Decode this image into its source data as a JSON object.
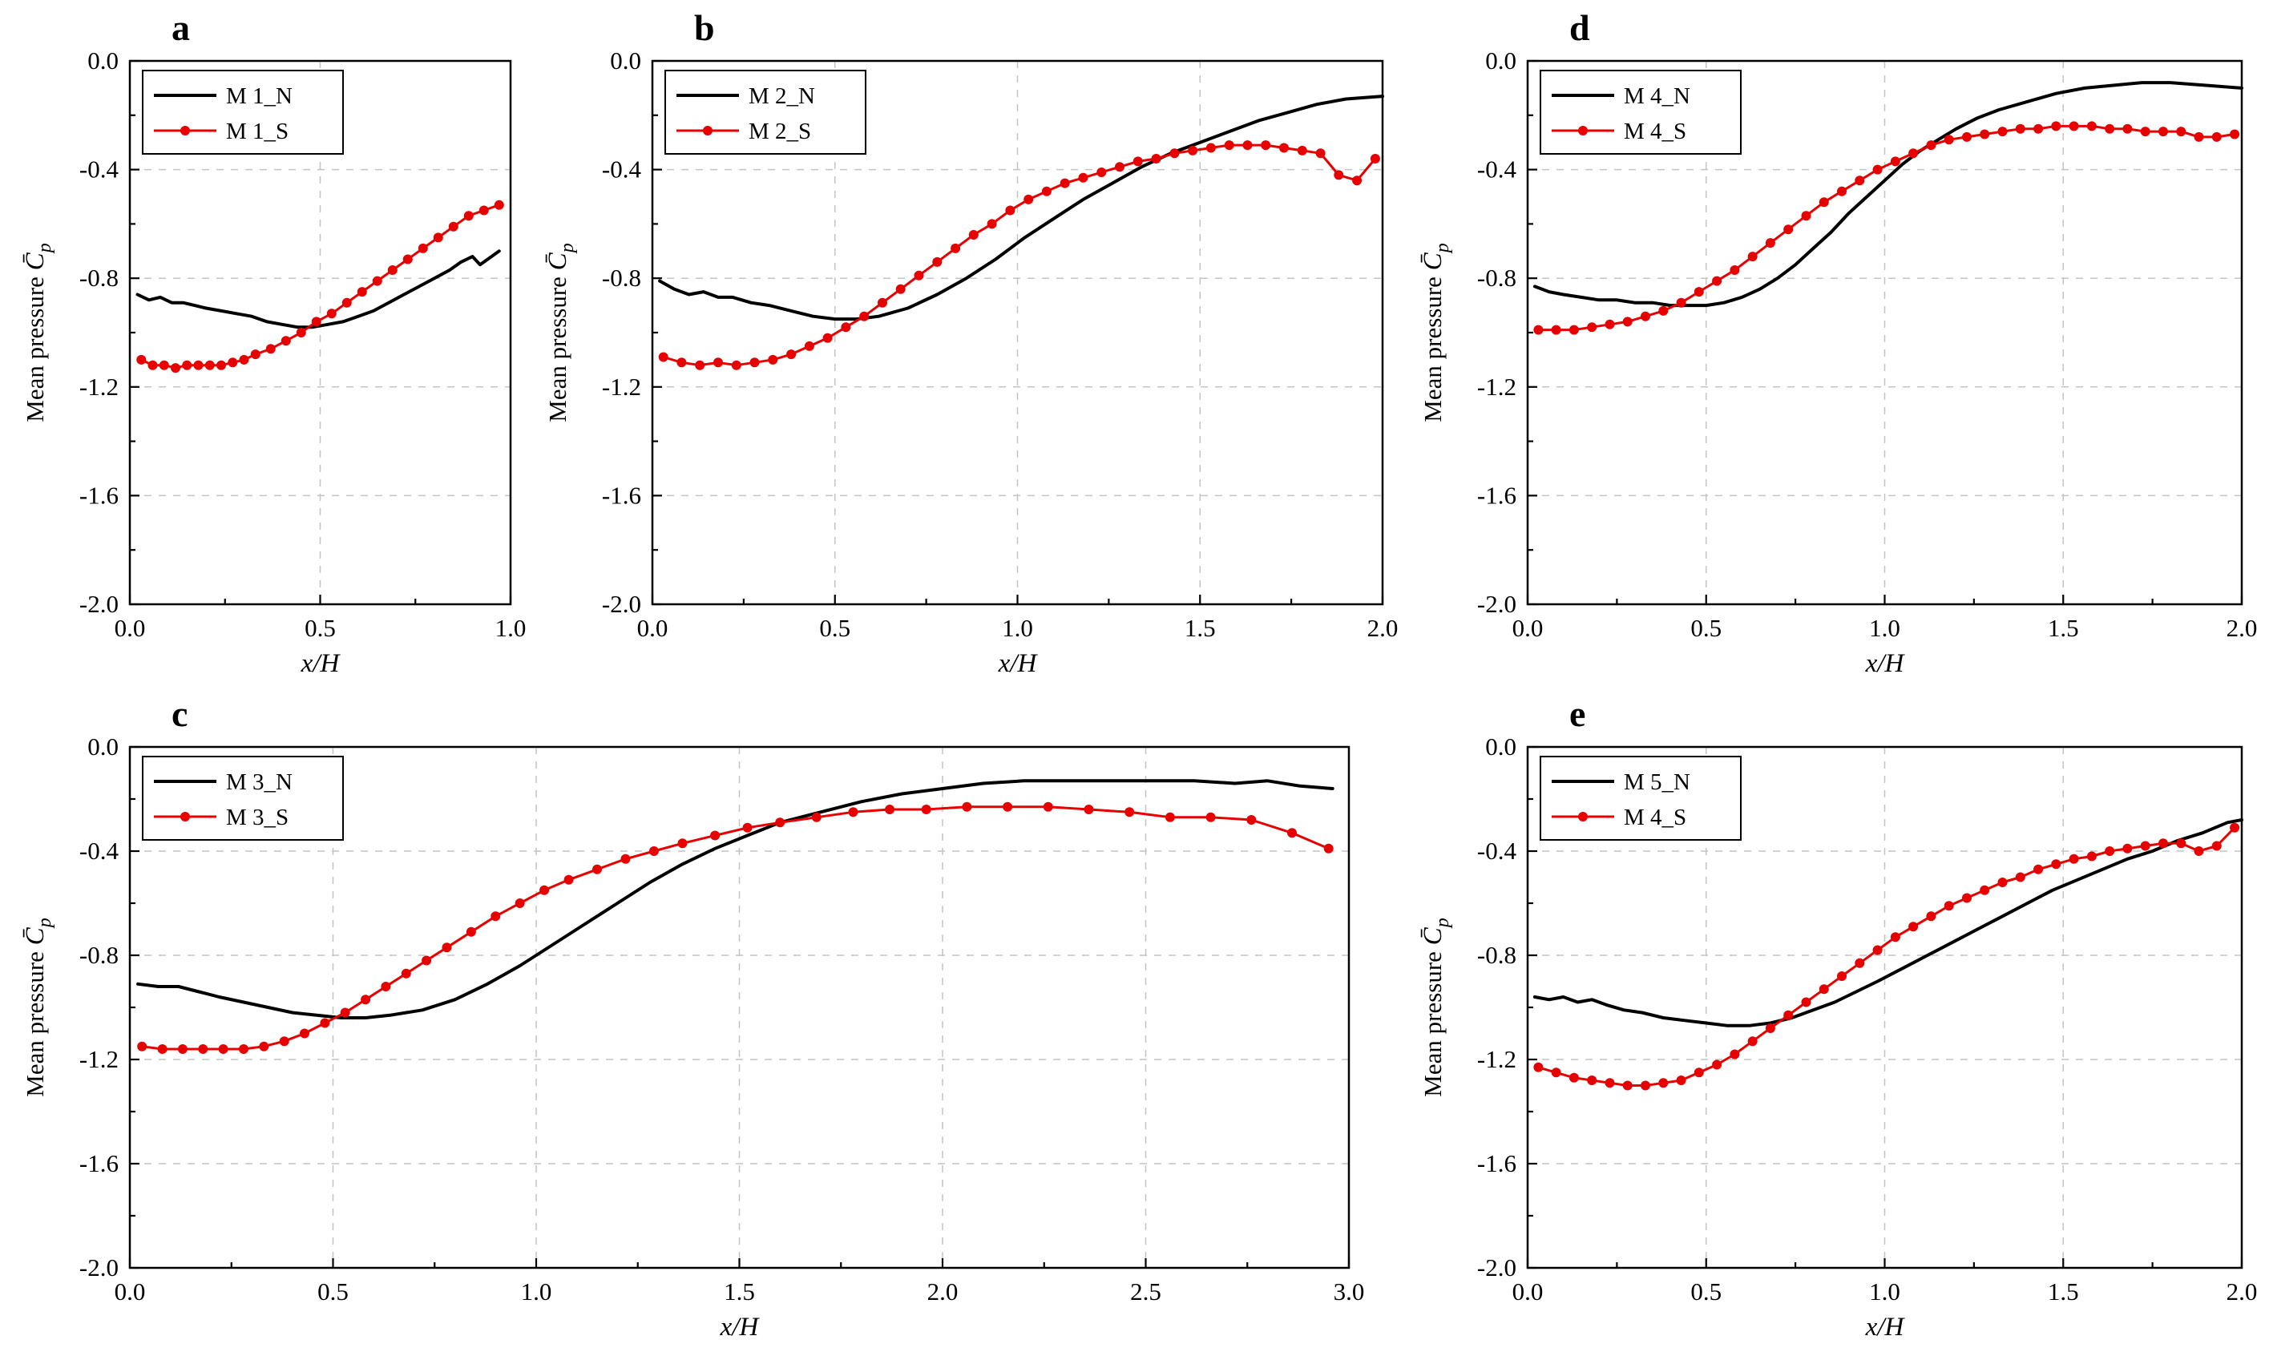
{
  "figure": {
    "background": "#ffffff",
    "colors": {
      "n_series": "#000000",
      "s_series": "#e60000",
      "grid": "#c4c4c4",
      "axis": "#000000"
    },
    "ylabel_prefix": "Mean pressure ",
    "ylabel_symbol": "C̄",
    "ylabel_subscript": "p",
    "xlabel": "x/H"
  },
  "chart_data": [
    {
      "type": "line",
      "letter": "a",
      "title": "",
      "xlabel": "x/H",
      "ylabel": "Mean pressure C̄p",
      "xlim": [
        0,
        1.0
      ],
      "ylim": [
        -2.0,
        0.0
      ],
      "xticks": [
        "0.0",
        "0.5",
        "1.0"
      ],
      "xtick_values": [
        0,
        0.5,
        1.0
      ],
      "yticks": [
        "0.0",
        "-0.4",
        "-0.8",
        "-1.2",
        "-1.6",
        "-2.0"
      ],
      "ytick_values": [
        0,
        -0.4,
        -0.8,
        -1.2,
        -1.6,
        -2.0
      ],
      "grid": true,
      "legend_position": "top-left",
      "series": [
        {
          "name": "M 1_N",
          "color": "#000000",
          "marker": "none",
          "x": [
            0.02,
            0.05,
            0.08,
            0.11,
            0.14,
            0.17,
            0.2,
            0.24,
            0.28,
            0.32,
            0.36,
            0.4,
            0.44,
            0.48,
            0.52,
            0.56,
            0.6,
            0.64,
            0.68,
            0.72,
            0.76,
            0.8,
            0.84,
            0.87,
            0.9,
            0.92,
            0.94,
            0.97
          ],
          "y": [
            -0.86,
            -0.88,
            -0.87,
            -0.89,
            -0.89,
            -0.9,
            -0.91,
            -0.92,
            -0.93,
            -0.94,
            -0.96,
            -0.97,
            -0.98,
            -0.98,
            -0.97,
            -0.96,
            -0.94,
            -0.92,
            -0.89,
            -0.86,
            -0.83,
            -0.8,
            -0.77,
            -0.74,
            -0.72,
            -0.75,
            -0.73,
            -0.7
          ]
        },
        {
          "name": "M 1_S",
          "color": "#e60000",
          "marker": "circle",
          "x": [
            0.03,
            0.06,
            0.09,
            0.12,
            0.15,
            0.18,
            0.21,
            0.24,
            0.27,
            0.3,
            0.33,
            0.37,
            0.41,
            0.45,
            0.49,
            0.53,
            0.57,
            0.61,
            0.65,
            0.69,
            0.73,
            0.77,
            0.81,
            0.85,
            0.89,
            0.93,
            0.97
          ],
          "y": [
            -1.1,
            -1.12,
            -1.12,
            -1.13,
            -1.12,
            -1.12,
            -1.12,
            -1.12,
            -1.11,
            -1.1,
            -1.08,
            -1.06,
            -1.03,
            -1.0,
            -0.96,
            -0.93,
            -0.89,
            -0.85,
            -0.81,
            -0.77,
            -0.73,
            -0.69,
            -0.65,
            -0.61,
            -0.57,
            -0.55,
            -0.53
          ]
        }
      ]
    },
    {
      "type": "line",
      "letter": "b",
      "title": "",
      "xlabel": "x/H",
      "ylabel": "Mean pressure C̄p",
      "xlim": [
        0,
        2.0
      ],
      "ylim": [
        -2.0,
        0.0
      ],
      "xticks": [
        "0.0",
        "0.5",
        "1.0",
        "1.5",
        "2.0"
      ],
      "xtick_values": [
        0,
        0.5,
        1.0,
        1.5,
        2.0
      ],
      "yticks": [
        "0.0",
        "-0.4",
        "-0.8",
        "-1.2",
        "-1.6",
        "-2.0"
      ],
      "ytick_values": [
        0,
        -0.4,
        -0.8,
        -1.2,
        -1.6,
        -2.0
      ],
      "grid": true,
      "legend_position": "top-left",
      "series": [
        {
          "name": "M 2_N",
          "color": "#000000",
          "marker": "none",
          "x": [
            0.02,
            0.06,
            0.1,
            0.14,
            0.18,
            0.22,
            0.27,
            0.32,
            0.38,
            0.44,
            0.5,
            0.56,
            0.62,
            0.7,
            0.78,
            0.86,
            0.94,
            1.02,
            1.1,
            1.18,
            1.26,
            1.34,
            1.42,
            1.5,
            1.58,
            1.66,
            1.74,
            1.82,
            1.9,
            2.0
          ],
          "y": [
            -0.81,
            -0.84,
            -0.86,
            -0.85,
            -0.87,
            -0.87,
            -0.89,
            -0.9,
            -0.92,
            -0.94,
            -0.95,
            -0.95,
            -0.94,
            -0.91,
            -0.86,
            -0.8,
            -0.73,
            -0.65,
            -0.58,
            -0.51,
            -0.45,
            -0.39,
            -0.34,
            -0.3,
            -0.26,
            -0.22,
            -0.19,
            -0.16,
            -0.14,
            -0.13
          ]
        },
        {
          "name": "M 2_S",
          "color": "#e60000",
          "marker": "circle",
          "x": [
            0.03,
            0.08,
            0.13,
            0.18,
            0.23,
            0.28,
            0.33,
            0.38,
            0.43,
            0.48,
            0.53,
            0.58,
            0.63,
            0.68,
            0.73,
            0.78,
            0.83,
            0.88,
            0.93,
            0.98,
            1.03,
            1.08,
            1.13,
            1.18,
            1.23,
            1.28,
            1.33,
            1.38,
            1.43,
            1.48,
            1.53,
            1.58,
            1.63,
            1.68,
            1.73,
            1.78,
            1.83,
            1.88,
            1.93,
            1.98
          ],
          "y": [
            -1.09,
            -1.11,
            -1.12,
            -1.11,
            -1.12,
            -1.11,
            -1.1,
            -1.08,
            -1.05,
            -1.02,
            -0.98,
            -0.94,
            -0.89,
            -0.84,
            -0.79,
            -0.74,
            -0.69,
            -0.64,
            -0.6,
            -0.55,
            -0.51,
            -0.48,
            -0.45,
            -0.43,
            -0.41,
            -0.39,
            -0.37,
            -0.36,
            -0.34,
            -0.33,
            -0.32,
            -0.31,
            -0.31,
            -0.31,
            -0.32,
            -0.33,
            -0.34,
            -0.42,
            -0.44,
            -0.36
          ]
        }
      ]
    },
    {
      "type": "line",
      "letter": "c",
      "title": "",
      "xlabel": "x/H",
      "ylabel": "Mean pressure C̄p",
      "xlim": [
        0,
        3.0
      ],
      "ylim": [
        -2.0,
        0.0
      ],
      "xticks": [
        "0.0",
        "0.5",
        "1.0",
        "1.5",
        "2.0",
        "2.5",
        "3.0"
      ],
      "xtick_values": [
        0,
        0.5,
        1.0,
        1.5,
        2.0,
        2.5,
        3.0
      ],
      "yticks": [
        "0.0",
        "-0.4",
        "-0.8",
        "-1.2",
        "-1.6",
        "-2.0"
      ],
      "ytick_values": [
        0,
        -0.4,
        -0.8,
        -1.2,
        -1.6,
        -2.0
      ],
      "grid": true,
      "legend_position": "top-left",
      "series": [
        {
          "name": "M 3_N",
          "color": "#000000",
          "marker": "none",
          "x": [
            0.02,
            0.07,
            0.12,
            0.17,
            0.22,
            0.28,
            0.34,
            0.4,
            0.46,
            0.52,
            0.58,
            0.64,
            0.72,
            0.8,
            0.88,
            0.96,
            1.04,
            1.12,
            1.2,
            1.28,
            1.36,
            1.44,
            1.52,
            1.6,
            1.7,
            1.8,
            1.9,
            2.0,
            2.1,
            2.2,
            2.35,
            2.5,
            2.62,
            2.72,
            2.8,
            2.88,
            2.96
          ],
          "y": [
            -0.91,
            -0.92,
            -0.92,
            -0.94,
            -0.96,
            -0.98,
            -1.0,
            -1.02,
            -1.03,
            -1.04,
            -1.04,
            -1.03,
            -1.01,
            -0.97,
            -0.91,
            -0.84,
            -0.76,
            -0.68,
            -0.6,
            -0.52,
            -0.45,
            -0.39,
            -0.34,
            -0.29,
            -0.25,
            -0.21,
            -0.18,
            -0.16,
            -0.14,
            -0.13,
            -0.13,
            -0.13,
            -0.13,
            -0.14,
            -0.13,
            -0.15,
            -0.16
          ]
        },
        {
          "name": "M 3_S",
          "color": "#e60000",
          "marker": "circle",
          "x": [
            0.03,
            0.08,
            0.13,
            0.18,
            0.23,
            0.28,
            0.33,
            0.38,
            0.43,
            0.48,
            0.53,
            0.58,
            0.63,
            0.68,
            0.73,
            0.78,
            0.84,
            0.9,
            0.96,
            1.02,
            1.08,
            1.15,
            1.22,
            1.29,
            1.36,
            1.44,
            1.52,
            1.6,
            1.69,
            1.78,
            1.87,
            1.96,
            2.06,
            2.16,
            2.26,
            2.36,
            2.46,
            2.56,
            2.66,
            2.76,
            2.86,
            2.95
          ],
          "y": [
            -1.15,
            -1.16,
            -1.16,
            -1.16,
            -1.16,
            -1.16,
            -1.15,
            -1.13,
            -1.1,
            -1.06,
            -1.02,
            -0.97,
            -0.92,
            -0.87,
            -0.82,
            -0.77,
            -0.71,
            -0.65,
            -0.6,
            -0.55,
            -0.51,
            -0.47,
            -0.43,
            -0.4,
            -0.37,
            -0.34,
            -0.31,
            -0.29,
            -0.27,
            -0.25,
            -0.24,
            -0.24,
            -0.23,
            -0.23,
            -0.23,
            -0.24,
            -0.25,
            -0.27,
            -0.27,
            -0.28,
            -0.33,
            -0.39
          ]
        }
      ]
    },
    {
      "type": "line",
      "letter": "d",
      "title": "",
      "xlabel": "x/H",
      "ylabel": "Mean pressure C̄p",
      "xlim": [
        0,
        2.0
      ],
      "ylim": [
        -2.0,
        0.0
      ],
      "xticks": [
        "0.0",
        "0.5",
        "1.0",
        "1.5",
        "2.0"
      ],
      "xtick_values": [
        0,
        0.5,
        1.0,
        1.5,
        2.0
      ],
      "yticks": [
        "0.0",
        "-0.4",
        "-0.8",
        "-1.2",
        "-1.6",
        "-2.0"
      ],
      "ytick_values": [
        0,
        -0.4,
        -0.8,
        -1.2,
        -1.6,
        -2.0
      ],
      "grid": true,
      "legend_position": "top-left",
      "series": [
        {
          "name": "M 4_N",
          "color": "#000000",
          "marker": "none",
          "x": [
            0.02,
            0.06,
            0.1,
            0.15,
            0.2,
            0.25,
            0.3,
            0.35,
            0.4,
            0.45,
            0.5,
            0.55,
            0.6,
            0.65,
            0.7,
            0.75,
            0.8,
            0.85,
            0.9,
            0.95,
            1.0,
            1.05,
            1.1,
            1.15,
            1.2,
            1.26,
            1.32,
            1.4,
            1.48,
            1.56,
            1.64,
            1.72,
            1.8,
            1.9,
            2.0
          ],
          "y": [
            -0.83,
            -0.85,
            -0.86,
            -0.87,
            -0.88,
            -0.88,
            -0.89,
            -0.89,
            -0.9,
            -0.9,
            -0.9,
            -0.89,
            -0.87,
            -0.84,
            -0.8,
            -0.75,
            -0.69,
            -0.63,
            -0.56,
            -0.5,
            -0.44,
            -0.38,
            -0.33,
            -0.29,
            -0.25,
            -0.21,
            -0.18,
            -0.15,
            -0.12,
            -0.1,
            -0.09,
            -0.08,
            -0.08,
            -0.09,
            -0.1
          ]
        },
        {
          "name": "M 4_S",
          "color": "#e60000",
          "marker": "circle",
          "x": [
            0.03,
            0.08,
            0.13,
            0.18,
            0.23,
            0.28,
            0.33,
            0.38,
            0.43,
            0.48,
            0.53,
            0.58,
            0.63,
            0.68,
            0.73,
            0.78,
            0.83,
            0.88,
            0.93,
            0.98,
            1.03,
            1.08,
            1.13,
            1.18,
            1.23,
            1.28,
            1.33,
            1.38,
            1.43,
            1.48,
            1.53,
            1.58,
            1.63,
            1.68,
            1.73,
            1.78,
            1.83,
            1.88,
            1.93,
            1.98
          ],
          "y": [
            -0.99,
            -0.99,
            -0.99,
            -0.98,
            -0.97,
            -0.96,
            -0.94,
            -0.92,
            -0.89,
            -0.85,
            -0.81,
            -0.77,
            -0.72,
            -0.67,
            -0.62,
            -0.57,
            -0.52,
            -0.48,
            -0.44,
            -0.4,
            -0.37,
            -0.34,
            -0.31,
            -0.29,
            -0.28,
            -0.27,
            -0.26,
            -0.25,
            -0.25,
            -0.24,
            -0.24,
            -0.24,
            -0.25,
            -0.25,
            -0.26,
            -0.26,
            -0.26,
            -0.28,
            -0.28,
            -0.27
          ]
        }
      ]
    },
    {
      "type": "line",
      "letter": "e",
      "title": "",
      "xlabel": "x/H",
      "ylabel": "Mean pressure C̄p",
      "xlim": [
        0,
        2.0
      ],
      "ylim": [
        -2.0,
        0.0
      ],
      "xticks": [
        "0.0",
        "0.5",
        "1.0",
        "1.5",
        "2.0"
      ],
      "xtick_values": [
        0,
        0.5,
        1.0,
        1.5,
        2.0
      ],
      "yticks": [
        "0.0",
        "-0.4",
        "-0.8",
        "-1.2",
        "-1.6",
        "-2.0"
      ],
      "ytick_values": [
        0,
        -0.4,
        -0.8,
        -1.2,
        -1.6,
        -2.0
      ],
      "grid": true,
      "legend_position": "top-left",
      "series": [
        {
          "name": "M 5_N",
          "color": "#000000",
          "marker": "none",
          "x": [
            0.02,
            0.06,
            0.1,
            0.14,
            0.18,
            0.22,
            0.27,
            0.32,
            0.38,
            0.44,
            0.5,
            0.56,
            0.62,
            0.68,
            0.74,
            0.8,
            0.86,
            0.92,
            0.98,
            1.05,
            1.12,
            1.19,
            1.26,
            1.33,
            1.4,
            1.47,
            1.54,
            1.61,
            1.68,
            1.75,
            1.82,
            1.89,
            1.96,
            2.0
          ],
          "y": [
            -0.96,
            -0.97,
            -0.96,
            -0.98,
            -0.97,
            -0.99,
            -1.01,
            -1.02,
            -1.04,
            -1.05,
            -1.06,
            -1.07,
            -1.07,
            -1.06,
            -1.04,
            -1.01,
            -0.98,
            -0.94,
            -0.9,
            -0.85,
            -0.8,
            -0.75,
            -0.7,
            -0.65,
            -0.6,
            -0.55,
            -0.51,
            -0.47,
            -0.43,
            -0.4,
            -0.36,
            -0.33,
            -0.29,
            -0.28
          ]
        },
        {
          "name": "M 4_S",
          "color": "#e60000",
          "marker": "circle",
          "x": [
            0.03,
            0.08,
            0.13,
            0.18,
            0.23,
            0.28,
            0.33,
            0.38,
            0.43,
            0.48,
            0.53,
            0.58,
            0.63,
            0.68,
            0.73,
            0.78,
            0.83,
            0.88,
            0.93,
            0.98,
            1.03,
            1.08,
            1.13,
            1.18,
            1.23,
            1.28,
            1.33,
            1.38,
            1.43,
            1.48,
            1.53,
            1.58,
            1.63,
            1.68,
            1.73,
            1.78,
            1.83,
            1.88,
            1.93,
            1.98
          ],
          "y": [
            -1.23,
            -1.25,
            -1.27,
            -1.28,
            -1.29,
            -1.3,
            -1.3,
            -1.29,
            -1.28,
            -1.25,
            -1.22,
            -1.18,
            -1.13,
            -1.08,
            -1.03,
            -0.98,
            -0.93,
            -0.88,
            -0.83,
            -0.78,
            -0.73,
            -0.69,
            -0.65,
            -0.61,
            -0.58,
            -0.55,
            -0.52,
            -0.5,
            -0.47,
            -0.45,
            -0.43,
            -0.42,
            -0.4,
            -0.39,
            -0.38,
            -0.37,
            -0.37,
            -0.4,
            -0.38,
            -0.31
          ]
        }
      ]
    }
  ]
}
